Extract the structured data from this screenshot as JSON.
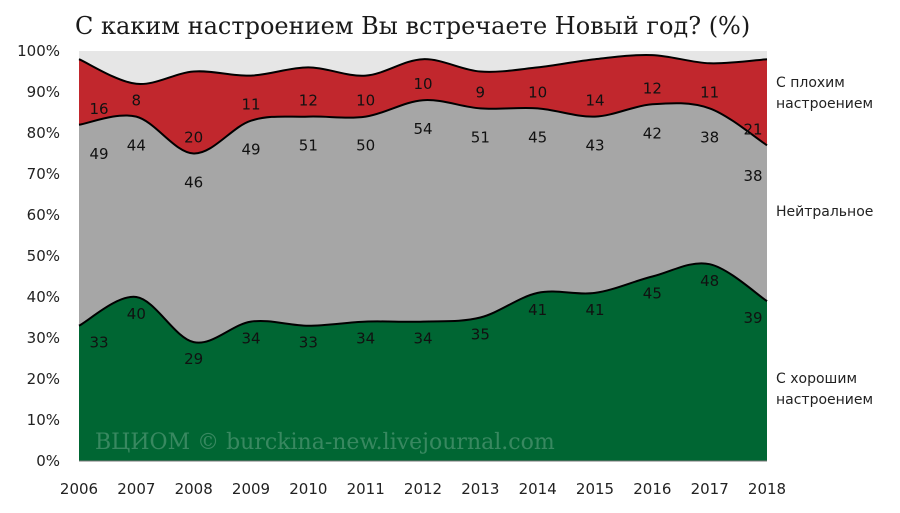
{
  "chart_data": {
    "type": "area",
    "title": "С каким настроением Вы встречаете Новый год? (%)",
    "x": [
      "2006",
      "2007",
      "2008",
      "2009",
      "2010",
      "2011",
      "2012",
      "2013",
      "2014",
      "2015",
      "2016",
      "2017",
      "2018"
    ],
    "series": [
      {
        "name": "С хорошим настроением",
        "color": "#006633",
        "values": [
          33,
          40,
          29,
          34,
          33,
          34,
          34,
          35,
          41,
          41,
          45,
          48,
          39
        ]
      },
      {
        "name": "Нейтральное",
        "color": "#a6a6a6",
        "values": [
          49,
          44,
          46,
          49,
          51,
          50,
          54,
          51,
          45,
          43,
          42,
          38,
          38
        ]
      },
      {
        "name": "С плохим настроением",
        "color": "#c1272d",
        "values": [
          16,
          8,
          20,
          11,
          12,
          10,
          10,
          9,
          10,
          14,
          12,
          11,
          21
        ]
      }
    ],
    "remainder_color": "#e6e6e6",
    "stacked": true,
    "ylim": [
      0,
      100
    ],
    "ytick_labels": [
      "0%",
      "10%",
      "20%",
      "30%",
      "40%",
      "50%",
      "60%",
      "70%",
      "80%",
      "90%",
      "100%"
    ],
    "legend_placement": "right",
    "watermark": "ВЦИОМ © burckina-new.livejournal.com",
    "grid": false
  }
}
